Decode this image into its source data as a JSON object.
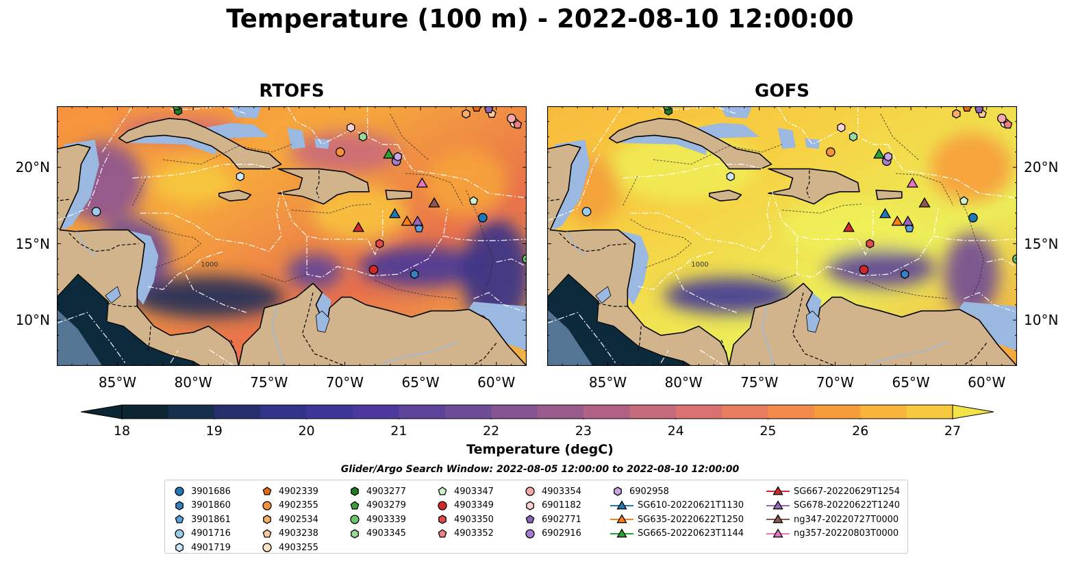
{
  "title": "Temperature (100 m) - 2022-08-10 12:00:00",
  "panels": [
    {
      "title": "RTOFS",
      "model": "rtofs"
    },
    {
      "title": "GOFS",
      "model": "gofs"
    }
  ],
  "map": {
    "lon_range": [
      -89,
      -58
    ],
    "lat_range": [
      7,
      24
    ],
    "lon_ticks": [
      -85,
      -80,
      -75,
      -70,
      -65,
      -60
    ],
    "lon_tick_labels": [
      "85°W",
      "80°W",
      "75°W",
      "70°W",
      "65°W",
      "60°W"
    ],
    "lat_ticks": [
      10,
      15,
      20
    ],
    "lat_tick_labels": [
      "10°N",
      "15°N",
      "20°N"
    ],
    "contour_label": "1000",
    "colors": {
      "land": "#d2b48c",
      "shallow_water": "#9ab8e0",
      "coastline": "#000000",
      "eez": "#ffffff"
    }
  },
  "colorbar": {
    "label": "Temperature (degC)",
    "min": 18,
    "max": 27,
    "step": 0.5,
    "ticks": [
      "18",
      "19",
      "20",
      "21",
      "22",
      "23",
      "24",
      "25",
      "26",
      "27"
    ],
    "colors": [
      "#0c2533",
      "#152f4d",
      "#262f6b",
      "#33328a",
      "#3e3599",
      "#4b3a9c",
      "#5c4299",
      "#6e4b96",
      "#835392",
      "#995b8c",
      "#b06185",
      "#c5697d",
      "#d87170",
      "#e77d5f",
      "#f28a4a",
      "#f79c3b",
      "#f9b43c",
      "#f6c93f",
      "#f4e249"
    ]
  },
  "search_window": "Glider/Argo Search Window: 2022-08-05 12:00:00 to 2022-08-10 12:00:00",
  "legend": {
    "items": [
      {
        "label": "3901686",
        "marker": "circle",
        "color": "#1f77b4",
        "lon": -60.9,
        "lat": 16.7
      },
      {
        "label": "3901860",
        "marker": "hexagon",
        "color": "#3a80c0",
        "lon": -65.4,
        "lat": 13.0
      },
      {
        "label": "3901861",
        "marker": "pentagon",
        "color": "#5aa0dc",
        "lon": -65.1,
        "lat": 16.0
      },
      {
        "label": "4901716",
        "marker": "circle",
        "color": "#9ccbec",
        "lon": -86.4,
        "lat": 17.1
      },
      {
        "label": "4901719",
        "marker": "hexagon",
        "color": "#cfe6f8",
        "lon": -76.9,
        "lat": 19.4
      },
      {
        "label": "4902339",
        "marker": "pentagon",
        "color": "#e56a0e",
        "lon": -61.3,
        "lat": 23.9
      },
      {
        "label": "4902355",
        "marker": "circle",
        "color": "#f5923a",
        "lon": -70.3,
        "lat": 21.0
      },
      {
        "label": "4902534",
        "marker": "hexagon",
        "color": "#f8ad6c",
        "lon": -62.0,
        "lat": 23.5
      },
      {
        "label": "4903238",
        "marker": "pentagon",
        "color": "#fbc99b",
        "lon": -60.3,
        "lat": 23.5
      },
      {
        "label": "4903255",
        "marker": "circle",
        "color": "#fde4c8",
        "lon": -58.8,
        "lat": 22.9
      },
      {
        "label": "4903277",
        "marker": "hexagon",
        "color": "#227a22",
        "lon": -81.0,
        "lat": 23.7
      },
      {
        "label": "4903279",
        "marker": "pentagon",
        "color": "#3c9e3c",
        "lon": -81.1,
        "lat": 24.0
      },
      {
        "label": "4903339",
        "marker": "circle",
        "color": "#6cc46c",
        "lon": -58.0,
        "lat": 14.0
      },
      {
        "label": "4903345",
        "marker": "hexagon",
        "color": "#9ad99a",
        "lon": -68.8,
        "lat": 22.0
      },
      {
        "label": "4903347",
        "marker": "pentagon",
        "color": "#ccefcc",
        "lon": -61.5,
        "lat": 17.8
      },
      {
        "label": "4903349",
        "marker": "circle",
        "color": "#d62728",
        "lon": -68.1,
        "lat": 13.3
      },
      {
        "label": "4903350",
        "marker": "hexagon",
        "color": "#e34a4a",
        "lon": -67.7,
        "lat": 15.0
      },
      {
        "label": "4903352",
        "marker": "pentagon",
        "color": "#ef8080",
        "lon": -58.6,
        "lat": 22.8
      },
      {
        "label": "4903354",
        "marker": "circle",
        "color": "#f5a8a8",
        "lon": -59.0,
        "lat": 23.2
      },
      {
        "label": "6901182",
        "marker": "hexagon",
        "color": "#fbd2d2",
        "lon": -69.6,
        "lat": 22.6
      },
      {
        "label": "6902771",
        "marker": "pentagon",
        "color": "#8c64b4",
        "lon": -60.5,
        "lat": 23.8
      },
      {
        "label": "6902916",
        "marker": "circle",
        "color": "#a37ccb",
        "lon": -66.6,
        "lat": 20.4
      },
      {
        "label": "6902958",
        "marker": "hexagon",
        "color": "#c7a8e2",
        "lon": -66.5,
        "lat": 20.7
      },
      {
        "label": "SG610-20220621T1130",
        "marker": "triangle",
        "color": "#1f77b4",
        "line": true,
        "lon": -66.7,
        "lat": 16.9
      },
      {
        "label": "SG635-20220622T1250",
        "marker": "triangle",
        "color": "#ff7f0e",
        "line": true,
        "lon": -65.9,
        "lat": 16.4
      },
      {
        "label": "SG665-20220623T1144",
        "marker": "triangle",
        "color": "#2ca02c",
        "line": true,
        "lon": -67.1,
        "lat": 20.8
      },
      {
        "label": "SG667-20220629T1254",
        "marker": "triangle",
        "color": "#d62728",
        "line": true,
        "lon": -69.1,
        "lat": 16.0
      },
      {
        "label": "SG678-20220622T1240",
        "marker": "triangle",
        "color": "#9467bd",
        "line": true,
        "lon": -65.2,
        "lat": 16.4
      },
      {
        "label": "ng347-20220727T0000",
        "marker": "triangle",
        "color": "#8c564b",
        "line": true,
        "lon": -64.1,
        "lat": 17.6
      },
      {
        "label": "ng357-20220803T0000",
        "marker": "triangle",
        "color": "#e377c2",
        "line": true,
        "lon": -64.9,
        "lat": 18.9
      }
    ]
  }
}
